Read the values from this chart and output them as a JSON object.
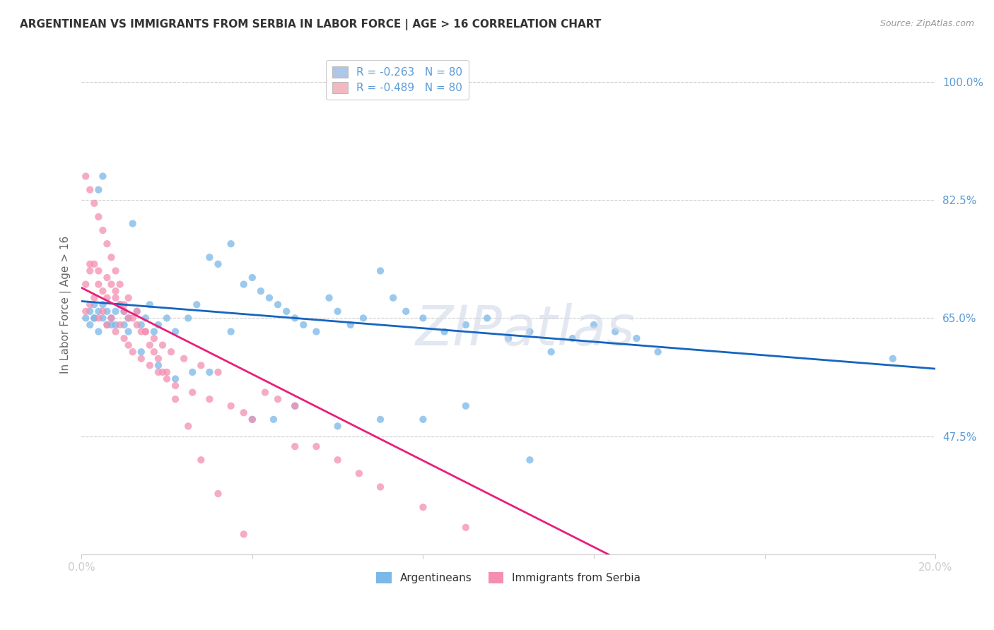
{
  "title": "ARGENTINEAN VS IMMIGRANTS FROM SERBIA IN LABOR FORCE | AGE > 16 CORRELATION CHART",
  "source": "Source: ZipAtlas.com",
  "ylabel": "In Labor Force | Age > 16",
  "xlim": [
    0.0,
    0.2
  ],
  "ylim": [
    0.3,
    1.04
  ],
  "ytick_vals": [
    1.0,
    0.825,
    0.65,
    0.475
  ],
  "ytick_labels": [
    "100.0%",
    "82.5%",
    "65.0%",
    "47.5%"
  ],
  "legend_entries": [
    {
      "label": "R = -0.263   N = 80",
      "facecolor": "#aec6e8"
    },
    {
      "label": "R = -0.489   N = 80",
      "facecolor": "#f4b8c1"
    }
  ],
  "blue_scatter_color": "#7ab8e8",
  "pink_scatter_color": "#f48fb1",
  "blue_line_color": "#1565c0",
  "pink_line_color": "#e91e7a",
  "scatter_alpha": 0.75,
  "scatter_size": 55,
  "background_color": "#ffffff",
  "grid_color": "#cccccc",
  "axis_label_color": "#666666",
  "tick_color": "#5b9bd5",
  "title_color": "#333333",
  "watermark": "ZIPatlas",
  "blue_line_x": [
    0.0,
    0.2
  ],
  "blue_line_y": [
    0.675,
    0.575
  ],
  "pink_line_x": [
    0.0,
    0.125
  ],
  "pink_line_y": [
    0.695,
    0.295
  ],
  "blue_points_x": [
    0.001,
    0.002,
    0.002,
    0.003,
    0.003,
    0.004,
    0.004,
    0.005,
    0.005,
    0.006,
    0.006,
    0.007,
    0.007,
    0.008,
    0.009,
    0.01,
    0.01,
    0.011,
    0.012,
    0.013,
    0.014,
    0.015,
    0.016,
    0.017,
    0.018,
    0.02,
    0.022,
    0.025,
    0.027,
    0.03,
    0.032,
    0.035,
    0.038,
    0.04,
    0.042,
    0.044,
    0.046,
    0.048,
    0.05,
    0.052,
    0.055,
    0.058,
    0.06,
    0.063,
    0.066,
    0.07,
    0.073,
    0.076,
    0.08,
    0.085,
    0.09,
    0.095,
    0.1,
    0.105,
    0.11,
    0.115,
    0.12,
    0.125,
    0.13,
    0.135,
    0.003,
    0.005,
    0.008,
    0.011,
    0.014,
    0.018,
    0.022,
    0.026,
    0.03,
    0.035,
    0.04,
    0.045,
    0.05,
    0.06,
    0.07,
    0.08,
    0.09,
    0.105,
    0.19,
    0.004
  ],
  "blue_points_y": [
    0.65,
    0.66,
    0.64,
    0.67,
    0.65,
    0.63,
    0.66,
    0.65,
    0.67,
    0.64,
    0.66,
    0.65,
    0.64,
    0.66,
    0.67,
    0.64,
    0.66,
    0.65,
    0.79,
    0.66,
    0.64,
    0.65,
    0.67,
    0.63,
    0.64,
    0.65,
    0.63,
    0.65,
    0.67,
    0.74,
    0.73,
    0.76,
    0.7,
    0.71,
    0.69,
    0.68,
    0.67,
    0.66,
    0.65,
    0.64,
    0.63,
    0.68,
    0.66,
    0.64,
    0.65,
    0.72,
    0.68,
    0.66,
    0.65,
    0.63,
    0.64,
    0.65,
    0.62,
    0.63,
    0.6,
    0.62,
    0.64,
    0.63,
    0.62,
    0.6,
    0.65,
    0.86,
    0.64,
    0.63,
    0.6,
    0.58,
    0.56,
    0.57,
    0.57,
    0.63,
    0.5,
    0.5,
    0.52,
    0.49,
    0.5,
    0.5,
    0.52,
    0.44,
    0.59,
    0.84
  ],
  "pink_points_x": [
    0.001,
    0.001,
    0.002,
    0.002,
    0.003,
    0.003,
    0.004,
    0.004,
    0.005,
    0.005,
    0.006,
    0.006,
    0.007,
    0.007,
    0.008,
    0.008,
    0.009,
    0.009,
    0.01,
    0.01,
    0.011,
    0.011,
    0.012,
    0.013,
    0.014,
    0.015,
    0.016,
    0.017,
    0.018,
    0.019,
    0.02,
    0.021,
    0.022,
    0.024,
    0.026,
    0.028,
    0.03,
    0.032,
    0.035,
    0.038,
    0.04,
    0.043,
    0.046,
    0.05,
    0.055,
    0.06,
    0.065,
    0.07,
    0.08,
    0.09,
    0.002,
    0.004,
    0.006,
    0.008,
    0.01,
    0.012,
    0.014,
    0.016,
    0.018,
    0.02,
    0.001,
    0.002,
    0.003,
    0.004,
    0.005,
    0.006,
    0.007,
    0.008,
    0.009,
    0.011,
    0.013,
    0.015,
    0.017,
    0.019,
    0.022,
    0.025,
    0.028,
    0.032,
    0.038,
    0.05
  ],
  "pink_points_y": [
    0.66,
    0.7,
    0.67,
    0.72,
    0.68,
    0.73,
    0.65,
    0.7,
    0.66,
    0.69,
    0.64,
    0.68,
    0.65,
    0.7,
    0.63,
    0.68,
    0.64,
    0.67,
    0.62,
    0.66,
    0.61,
    0.65,
    0.6,
    0.64,
    0.59,
    0.63,
    0.58,
    0.62,
    0.57,
    0.61,
    0.56,
    0.6,
    0.55,
    0.59,
    0.54,
    0.58,
    0.53,
    0.57,
    0.52,
    0.51,
    0.5,
    0.54,
    0.53,
    0.52,
    0.46,
    0.44,
    0.42,
    0.4,
    0.37,
    0.34,
    0.73,
    0.72,
    0.71,
    0.69,
    0.67,
    0.65,
    0.63,
    0.61,
    0.59,
    0.57,
    0.86,
    0.84,
    0.82,
    0.8,
    0.78,
    0.76,
    0.74,
    0.72,
    0.7,
    0.68,
    0.66,
    0.63,
    0.6,
    0.57,
    0.53,
    0.49,
    0.44,
    0.39,
    0.33,
    0.46
  ]
}
